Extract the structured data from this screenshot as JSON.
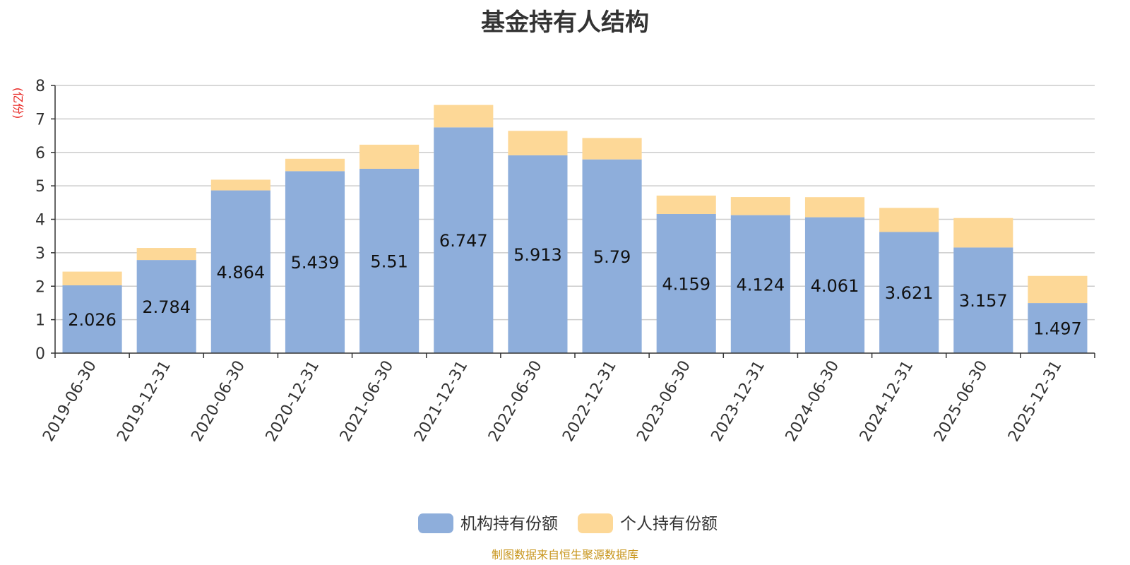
{
  "chart_data": {
    "type": "bar",
    "stacked": true,
    "title": "基金持有人结构",
    "ylabel": "(亿份)",
    "xlabel": "",
    "ylim": [
      0,
      8
    ],
    "yticks": [
      0,
      1,
      2,
      3,
      4,
      5,
      6,
      7,
      8
    ],
    "grid": true,
    "legend_position": "bottom-center",
    "categories": [
      "2019-06-30",
      "2019-12-31",
      "2020-06-30",
      "2020-12-31",
      "2021-06-30",
      "2021-12-31",
      "2022-06-30",
      "2022-12-31",
      "2023-06-30",
      "2023-12-31",
      "2024-06-30",
      "2024-12-31",
      "2025-06-30",
      "2025-12-31"
    ],
    "series": [
      {
        "name": "机构持有份额",
        "color": "#8eaedb",
        "values": [
          2.026,
          2.784,
          4.864,
          5.439,
          5.51,
          6.747,
          5.913,
          5.79,
          4.159,
          4.124,
          4.061,
          3.621,
          3.157,
          1.497
        ],
        "labels": [
          "2.026",
          "2.784",
          "4.864",
          "5.439",
          "5.51",
          "6.747",
          "5.913",
          "5.79",
          "4.159",
          "4.124",
          "4.061",
          "3.621",
          "3.157",
          "1.497"
        ]
      },
      {
        "name": "个人持有份额",
        "color": "#fdd897",
        "values": [
          0.41,
          0.36,
          0.32,
          0.37,
          0.72,
          0.67,
          0.73,
          0.64,
          0.55,
          0.54,
          0.6,
          0.72,
          0.88,
          0.81
        ]
      }
    ],
    "source_note": "制图数据来自恒生聚源数据库"
  }
}
